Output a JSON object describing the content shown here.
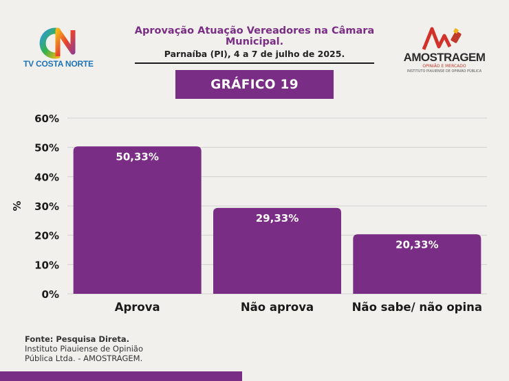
{
  "header": {
    "title": "Aprovação Atuação Vereadores na Câmara Municipal.",
    "subtitle": "Parnaíba (PI), 4 a 7 de julho de 2025.",
    "chart_label": "GRÁFICO 19"
  },
  "logos": {
    "left_text": "TV COSTA NORTE",
    "right_text": "AMOSTRAGEM",
    "right_tagline": "OPINIÃO E MERCADO",
    "right_subtagline": "INSTITUTO PIAUIENSE DE OPINIÃO PÚBLICA"
  },
  "footer": {
    "source_label": "Fonte: Pesquisa Direta.",
    "source_line1": "Instituto Piauiense de Opinião",
    "source_line2": "Pública Ltda. - AMOSTRAGEM."
  },
  "colors": {
    "accent": "#7a2d84",
    "background": "#f1f0ec"
  },
  "chart_data": {
    "type": "bar",
    "categories": [
      "Aprova",
      "Não aprova",
      "Não sabe/ não opina"
    ],
    "values": [
      50.33,
      29.33,
      20.33
    ],
    "data_labels": [
      "50,33%",
      "29,33%",
      "20,33%"
    ],
    "ylabel": "%",
    "ylim": [
      0,
      60
    ],
    "yticks": [
      0,
      10,
      20,
      30,
      40,
      50,
      60
    ],
    "ytick_labels": [
      "0%",
      "10%",
      "20%",
      "30%",
      "40%",
      "50%",
      "60%"
    ],
    "grid": true,
    "bar_color": "#7a2d84"
  }
}
